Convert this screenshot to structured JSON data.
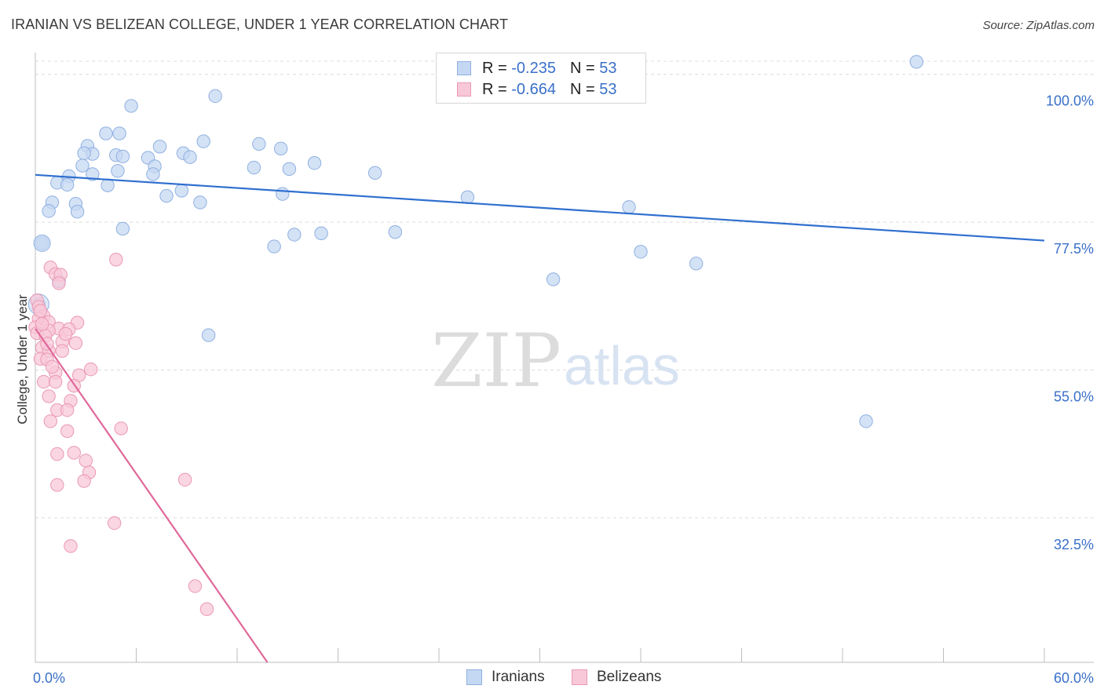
{
  "header": {
    "title": "IRANIAN VS BELIZEAN COLLEGE, UNDER 1 YEAR CORRELATION CHART",
    "source": "Source: ZipAtlas.com"
  },
  "legend": {
    "rows": [
      {
        "r_label": "R = ",
        "r_value": "-0.235",
        "n_label": "N = ",
        "n_value": "53"
      },
      {
        "r_label": "R = ",
        "r_value": "-0.664",
        "n_label": "N = ",
        "n_value": "53"
      }
    ]
  },
  "colors": {
    "blue_fill": "#c5d8f3",
    "blue_stroke": "#8fb0e0",
    "blue_line": "#2f6fcf",
    "pink_fill": "#f8c8d8",
    "pink_stroke": "#ea98b4",
    "pink_line": "#e0689a",
    "axis_label": "#3a70c8",
    "grid": "#dcdcdc"
  },
  "chart_data": {
    "type": "scatter",
    "ylabel": "College, Under 1 year",
    "x_tick_labels": [
      "0.0%",
      "60.0%"
    ],
    "y_tick_labels": [
      "100.0%",
      "77.5%",
      "55.0%",
      "32.5%"
    ],
    "y_ticks": [
      100,
      77.5,
      55,
      32.5
    ],
    "xlim": [
      0,
      60
    ],
    "ylim": [
      10.5,
      102
    ],
    "watermark": {
      "zip": "ZIP",
      "atlas": "atlas"
    },
    "series": [
      {
        "name": "Iranians",
        "trend": {
          "x0": 0,
          "y0": 84.7,
          "x1": 60,
          "y1": 74.7
        },
        "points": [
          [
            52.4,
            101.9
          ],
          [
            5.7,
            95.2
          ],
          [
            10.7,
            96.7
          ],
          [
            4.2,
            91.0
          ],
          [
            5.0,
            91.0
          ],
          [
            10.0,
            89.8
          ],
          [
            7.4,
            89.0
          ],
          [
            13.3,
            89.4
          ],
          [
            14.6,
            88.7
          ],
          [
            3.1,
            89.1
          ],
          [
            3.4,
            87.9
          ],
          [
            2.9,
            88.0
          ],
          [
            8.8,
            88.0
          ],
          [
            4.8,
            87.7
          ],
          [
            5.2,
            87.5
          ],
          [
            9.2,
            87.4
          ],
          [
            6.7,
            87.3
          ],
          [
            16.6,
            86.5
          ],
          [
            2.8,
            86.1
          ],
          [
            7.1,
            86.0
          ],
          [
            13.0,
            85.8
          ],
          [
            15.1,
            85.6
          ],
          [
            4.9,
            85.3
          ],
          [
            20.2,
            85.0
          ],
          [
            3.4,
            84.8
          ],
          [
            7.0,
            84.8
          ],
          [
            2.0,
            84.5
          ],
          [
            1.3,
            83.5
          ],
          [
            1.9,
            83.2
          ],
          [
            4.3,
            83.1
          ],
          [
            8.7,
            82.3
          ],
          [
            14.7,
            81.8
          ],
          [
            7.8,
            81.5
          ],
          [
            25.7,
            81.3
          ],
          [
            9.8,
            80.5
          ],
          [
            1.0,
            80.5
          ],
          [
            2.4,
            80.3
          ],
          [
            35.3,
            79.8
          ],
          [
            0.8,
            79.2
          ],
          [
            2.5,
            79.1
          ],
          [
            5.2,
            76.5
          ],
          [
            15.4,
            75.6
          ],
          [
            17.0,
            75.8
          ],
          [
            21.4,
            76.0
          ],
          [
            0.4,
            74.3
          ],
          [
            14.2,
            73.8
          ],
          [
            36.0,
            73.0
          ],
          [
            39.3,
            71.2
          ],
          [
            30.8,
            68.8
          ],
          [
            1.4,
            68.5
          ],
          [
            0.2,
            65.0
          ],
          [
            10.3,
            60.3
          ],
          [
            49.4,
            47.2
          ]
        ]
      },
      {
        "name": "Belizeans",
        "trend": {
          "x0": 0,
          "y0": 61.3,
          "x1": 13.8,
          "y1": 10.5
        },
        "points": [
          [
            4.8,
            71.8
          ],
          [
            0.9,
            70.6
          ],
          [
            1.2,
            69.6
          ],
          [
            1.5,
            69.5
          ],
          [
            1.4,
            68.2
          ],
          [
            0.1,
            65.6
          ],
          [
            0.2,
            64.6
          ],
          [
            0.5,
            63.2
          ],
          [
            0.2,
            62.8
          ],
          [
            0.8,
            62.3
          ],
          [
            2.5,
            62.2
          ],
          [
            0.0,
            61.5
          ],
          [
            1.4,
            61.3
          ],
          [
            2.0,
            61.2
          ],
          [
            0.8,
            61.0
          ],
          [
            0.1,
            60.6
          ],
          [
            0.6,
            60.2
          ],
          [
            1.6,
            59.3
          ],
          [
            2.4,
            59.1
          ],
          [
            0.4,
            58.4
          ],
          [
            0.8,
            57.9
          ],
          [
            1.6,
            57.9
          ],
          [
            0.3,
            56.7
          ],
          [
            0.7,
            56.6
          ],
          [
            3.3,
            55.1
          ],
          [
            1.2,
            54.6
          ],
          [
            2.6,
            54.2
          ],
          [
            0.5,
            53.2
          ],
          [
            1.2,
            53.2
          ],
          [
            2.3,
            52.6
          ],
          [
            0.8,
            51.0
          ],
          [
            2.1,
            50.3
          ],
          [
            1.3,
            48.9
          ],
          [
            1.9,
            48.9
          ],
          [
            0.9,
            47.2
          ],
          [
            5.1,
            46.1
          ],
          [
            1.9,
            45.7
          ],
          [
            1.3,
            42.2
          ],
          [
            2.3,
            42.4
          ],
          [
            3.0,
            41.2
          ],
          [
            3.2,
            39.4
          ],
          [
            2.9,
            38.1
          ],
          [
            8.9,
            38.3
          ],
          [
            1.3,
            37.5
          ],
          [
            4.7,
            31.7
          ],
          [
            2.1,
            28.2
          ],
          [
            9.5,
            22.1
          ],
          [
            10.2,
            18.6
          ],
          [
            0.3,
            64.0
          ],
          [
            0.7,
            59.0
          ],
          [
            1.0,
            55.5
          ],
          [
            1.8,
            60.5
          ],
          [
            0.4,
            62.0
          ]
        ]
      }
    ]
  }
}
